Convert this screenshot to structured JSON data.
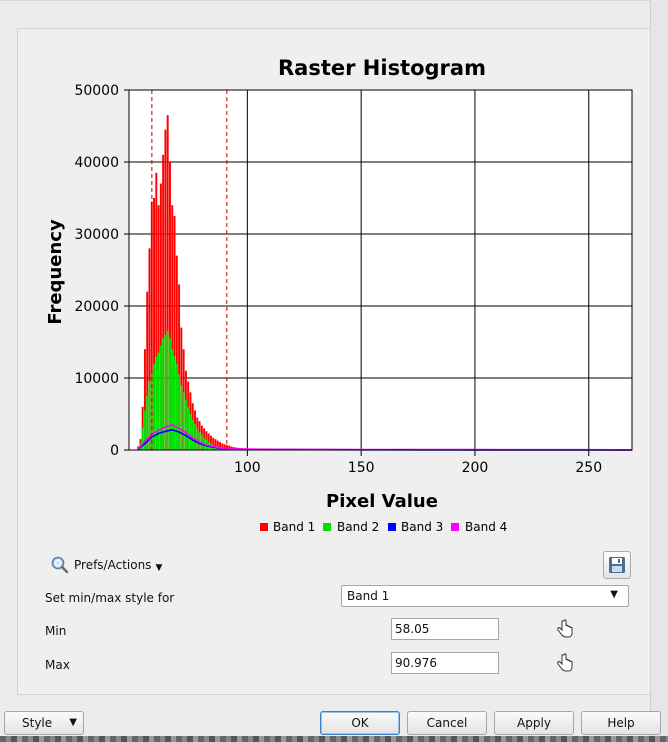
{
  "chart_data": {
    "type": "bar",
    "title": "Raster Histogram",
    "xlabel": "Pixel Value",
    "ylabel": "Frequency",
    "xlim": [
      48,
      269
    ],
    "ylim": [
      0,
      50000
    ],
    "x_ticks": [
      100,
      150,
      200,
      250
    ],
    "y_ticks": [
      0,
      10000,
      20000,
      30000,
      40000,
      50000
    ],
    "grid": true,
    "legend_position": "bottom",
    "series": [
      {
        "name": "Band 1",
        "color": "#ff0000",
        "x": [
          52,
          53,
          54,
          55,
          56,
          57,
          58,
          59,
          60,
          61,
          62,
          63,
          64,
          65,
          66,
          67,
          68,
          69,
          70,
          71,
          72,
          73,
          74,
          75,
          76,
          77,
          78,
          79,
          80,
          81,
          82,
          83,
          84,
          85,
          86,
          87,
          88,
          89,
          90,
          91,
          92,
          93,
          94,
          95,
          96,
          97,
          98,
          99,
          100,
          102,
          104,
          106,
          108,
          110,
          115,
          120
        ],
        "values": [
          500,
          1500,
          6000,
          14000,
          22000,
          28000,
          34500,
          35000,
          38500,
          34000,
          37000,
          41000,
          44500,
          46500,
          40000,
          34000,
          32500,
          27000,
          23000,
          17000,
          14000,
          11000,
          9500,
          8000,
          6500,
          5500,
          4500,
          4000,
          3400,
          3000,
          2600,
          2300,
          2000,
          1700,
          1500,
          1300,
          1100,
          900,
          800,
          700,
          600,
          500,
          400,
          350,
          300,
          250,
          200,
          170,
          150,
          120,
          100,
          80,
          60,
          50,
          30,
          20
        ]
      },
      {
        "name": "Band 2",
        "color": "#00e000",
        "x": [
          52,
          53,
          54,
          55,
          56,
          57,
          58,
          59,
          60,
          61,
          62,
          63,
          64,
          65,
          66,
          67,
          68,
          69,
          70,
          71,
          72,
          73,
          74,
          75,
          76,
          77,
          78,
          79,
          80,
          81,
          82,
          83,
          84,
          85,
          86,
          87,
          88,
          89,
          90
        ],
        "values": [
          300,
          1000,
          3000,
          5500,
          7500,
          9500,
          11000,
          12000,
          13000,
          13500,
          14500,
          15500,
          16000,
          16500,
          15500,
          14000,
          13000,
          12000,
          10500,
          9000,
          8000,
          7000,
          6000,
          5000,
          4200,
          3600,
          3000,
          2500,
          2100,
          1700,
          1400,
          1100,
          900,
          700,
          550,
          400,
          300,
          250,
          200
        ]
      },
      {
        "name": "Band 3",
        "color": "#0000ff",
        "x": [
          52,
          55,
          58,
          61,
          64,
          67,
          70,
          73,
          76,
          79,
          82,
          85,
          88,
          91,
          100,
          120,
          150,
          200,
          250,
          269
        ],
        "values": [
          100,
          900,
          1800,
          2300,
          2600,
          2800,
          2500,
          2000,
          1400,
          900,
          600,
          400,
          250,
          150,
          80,
          50,
          30,
          20,
          20,
          10
        ]
      },
      {
        "name": "Band 4",
        "color": "#ff00ff",
        "x": [
          52,
          55,
          58,
          61,
          64,
          67,
          70,
          73,
          76,
          79,
          82,
          85,
          88,
          91,
          100,
          120,
          150,
          200,
          250,
          269
        ],
        "values": [
          150,
          1200,
          2200,
          2700,
          3200,
          3500,
          3000,
          2400,
          1700,
          1100,
          700,
          500,
          300,
          200,
          120,
          80,
          60,
          60,
          40,
          20
        ]
      }
    ],
    "minmax_markers": [
      58.05,
      90.976
    ]
  },
  "prefs_label": "Prefs/Actions",
  "minmax_style_label": "Set min/max style for",
  "band_selected": "Band 1",
  "min_label": "Min",
  "min_value": "58.05",
  "max_label": "Max",
  "max_value": "90.976",
  "buttons": {
    "style": "Style",
    "ok": "OK",
    "cancel": "Cancel",
    "apply": "Apply",
    "help": "Help"
  }
}
